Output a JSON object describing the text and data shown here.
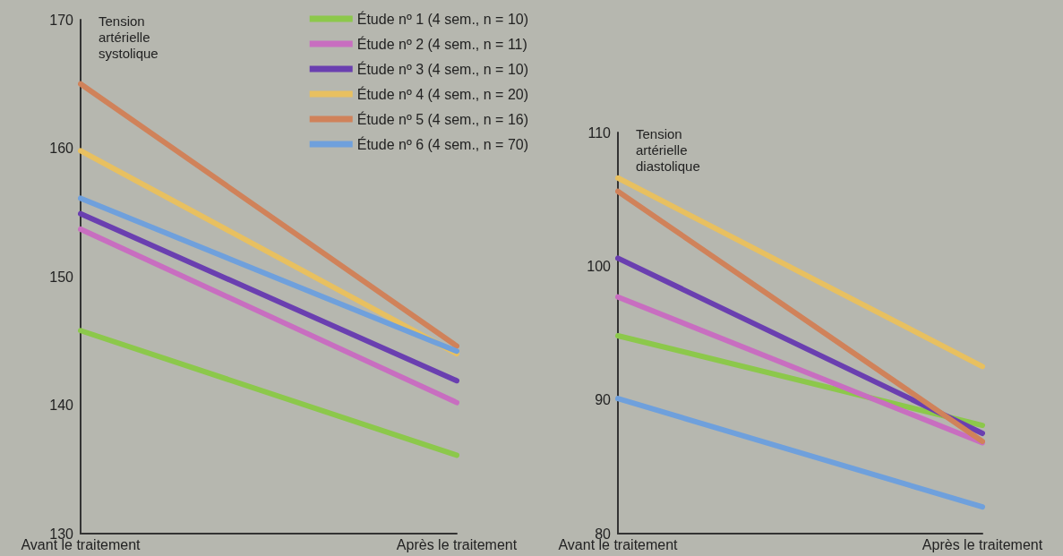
{
  "chart_data": [
    {
      "type": "line",
      "ylabel": "Tension\nartérielle\nsystolique",
      "categories": [
        "Avant le traitement",
        "Après le traitement"
      ],
      "ylim": [
        130,
        170
      ],
      "yticks": [
        130,
        140,
        150,
        160,
        170
      ],
      "legend": "top right",
      "marker": "none",
      "series": [
        {
          "name": "Étude nº 1 (4 sem., n = 10)",
          "color": "#8cc84b",
          "values": [
            145.8,
            136.1
          ]
        },
        {
          "name": "Étude nº 2 (4 sem., n = 11)",
          "color": "#c86ec0",
          "values": [
            153.7,
            140.2
          ]
        },
        {
          "name": "Étude nº 3 (4 sem., n = 10)",
          "color": "#6a3fb0",
          "values": [
            154.9,
            141.9
          ]
        },
        {
          "name": "Étude nº 4 (4 sem., n = 20)",
          "color": "#e8c060",
          "values": [
            159.8,
            144.0
          ]
        },
        {
          "name": "Étude nº 5 (4 sem., n = 16)",
          "color": "#d0825a",
          "values": [
            165.0,
            144.6
          ]
        },
        {
          "name": "Étude nº 6 (4 sem., n = 70)",
          "color": "#6fa0dc",
          "values": [
            156.1,
            144.2
          ]
        }
      ]
    },
    {
      "type": "line",
      "ylabel": "Tension\nartérielle\ndiastolique",
      "categories": [
        "Avant le traitement",
        "Après le traitement"
      ],
      "ylim": [
        80,
        110
      ],
      "yticks": [
        80,
        90,
        100,
        110
      ],
      "legend": false,
      "marker": "none",
      "series": [
        {
          "color": "#8cc84b",
          "values": [
            94.8,
            88.1
          ]
        },
        {
          "color": "#c86ec0",
          "values": [
            97.7,
            86.8
          ]
        },
        {
          "color": "#6a3fb0",
          "values": [
            100.6,
            87.5
          ]
        },
        {
          "color": "#e8c060",
          "values": [
            106.6,
            92.5
          ]
        },
        {
          "color": "#d0825a",
          "values": [
            105.6,
            86.9
          ]
        },
        {
          "color": "#6fa0dc",
          "values": [
            90.1,
            82.0
          ]
        }
      ]
    }
  ]
}
